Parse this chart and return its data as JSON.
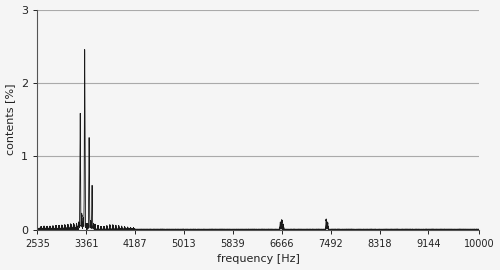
{
  "title": "",
  "xlabel": "frequency [Hz]",
  "ylabel": "contents [%]",
  "xlim": [
    2535,
    10000
  ],
  "ylim": [
    0,
    3
  ],
  "xticks": [
    2535,
    3361,
    4187,
    5013,
    5839,
    6666,
    7492,
    8318,
    9144,
    10000
  ],
  "yticks": [
    0,
    1,
    2,
    3
  ],
  "grid_color": "#aaaaaa",
  "line_color": "#1a1a1a",
  "background_color": "#f5f5f5",
  "peaks": [
    {
      "freq": 2600,
      "amp": 0.025
    },
    {
      "freq": 2650,
      "amp": 0.03
    },
    {
      "freq": 2700,
      "amp": 0.03
    },
    {
      "freq": 2750,
      "amp": 0.03
    },
    {
      "freq": 2800,
      "amp": 0.035
    },
    {
      "freq": 2850,
      "amp": 0.04
    },
    {
      "freq": 2900,
      "amp": 0.04
    },
    {
      "freq": 2950,
      "amp": 0.045
    },
    {
      "freq": 3000,
      "amp": 0.05
    },
    {
      "freq": 3050,
      "amp": 0.055
    },
    {
      "freq": 3100,
      "amp": 0.06
    },
    {
      "freq": 3150,
      "amp": 0.065
    },
    {
      "freq": 3200,
      "amp": 0.07
    },
    {
      "freq": 3236,
      "amp": 0.1
    },
    {
      "freq": 3261,
      "amp": 1.58
    },
    {
      "freq": 3286,
      "amp": 0.22
    },
    {
      "freq": 3311,
      "amp": 0.16
    },
    {
      "freq": 3336,
      "amp": 2.45
    },
    {
      "freq": 3361,
      "amp": 0.08
    },
    {
      "freq": 3386,
      "amp": 0.08
    },
    {
      "freq": 3411,
      "amp": 1.25
    },
    {
      "freq": 3436,
      "amp": 0.12
    },
    {
      "freq": 3461,
      "amp": 0.6
    },
    {
      "freq": 3486,
      "amp": 0.08
    },
    {
      "freq": 3511,
      "amp": 0.07
    },
    {
      "freq": 3561,
      "amp": 0.05
    },
    {
      "freq": 3611,
      "amp": 0.04
    },
    {
      "freq": 3661,
      "amp": 0.04
    },
    {
      "freq": 3711,
      "amp": 0.05
    },
    {
      "freq": 3761,
      "amp": 0.06
    },
    {
      "freq": 3811,
      "amp": 0.06
    },
    {
      "freq": 3861,
      "amp": 0.055
    },
    {
      "freq": 3911,
      "amp": 0.05
    },
    {
      "freq": 3961,
      "amp": 0.045
    },
    {
      "freq": 4011,
      "amp": 0.035
    },
    {
      "freq": 4061,
      "amp": 0.03
    },
    {
      "freq": 4111,
      "amp": 0.025
    },
    {
      "freq": 4161,
      "amp": 0.02
    },
    {
      "freq": 6641,
      "amp": 0.1
    },
    {
      "freq": 6666,
      "amp": 0.13
    },
    {
      "freq": 6691,
      "amp": 0.07
    },
    {
      "freq": 7416,
      "amp": 0.14
    },
    {
      "freq": 7441,
      "amp": 0.1
    }
  ],
  "figsize": [
    5.0,
    2.7
  ],
  "dpi": 100
}
